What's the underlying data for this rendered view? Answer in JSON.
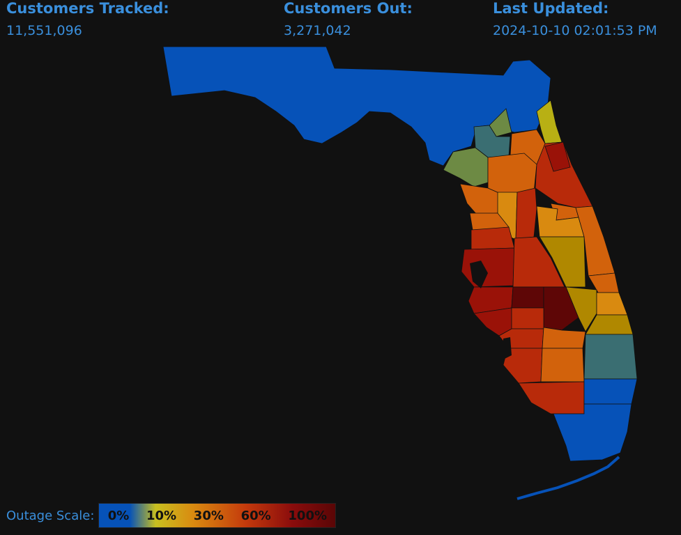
{
  "stats": {
    "tracked": {
      "label": "Customers Tracked:",
      "value": "11,551,096"
    },
    "out": {
      "label": "Customers Out:",
      "value": "3,271,042"
    },
    "updated": {
      "label": "Last Updated:",
      "value": "2024-10-10 02:01:53 PM"
    }
  },
  "legend": {
    "label": "Outage Scale:",
    "stops": [
      "0%",
      "10%",
      "30%",
      "60%",
      "100%"
    ]
  },
  "colors": {
    "background": "#111111",
    "text": "#3a8fdc",
    "scale_0": "#0652b8",
    "scale_teal": "#3a6e72",
    "scale_olive": "#6d8a44",
    "scale_10": "#b8b014",
    "scale_amber": "#b08800",
    "scale_30": "#d2620c",
    "scale_60": "#b82a0a",
    "scale_80": "#9a1208",
    "scale_100": "#5e0606"
  }
}
